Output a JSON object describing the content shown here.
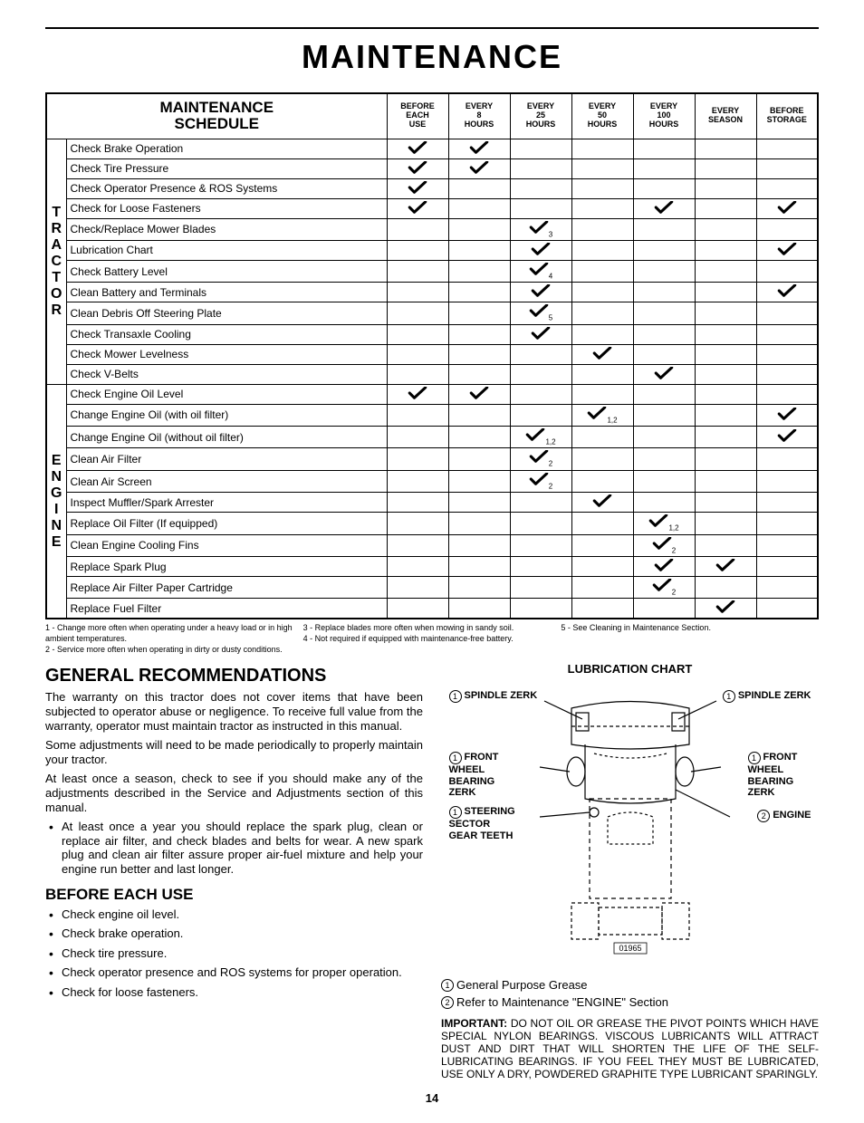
{
  "page_title": "MAINTENANCE",
  "schedule_title_line1": "MAINTENANCE",
  "schedule_title_line2": "SCHEDULE",
  "columns": [
    "BEFORE EACH USE",
    "EVERY 8 HOURS",
    "EVERY 25 HOURS",
    "EVERY 50 HOURS",
    "EVERY 100 HOURS",
    "EVERY SEASON",
    "BEFORE STORAGE"
  ],
  "groups": [
    {
      "label": "TRACTOR",
      "rows": [
        {
          "task": "Check Brake Operation",
          "marks": [
            "✔",
            "✔",
            "",
            "",
            "",
            "",
            ""
          ]
        },
        {
          "task": "Check Tire Pressure",
          "marks": [
            "✔",
            "✔",
            "",
            "",
            "",
            "",
            ""
          ]
        },
        {
          "task": "Check Operator Presence & ROS Systems",
          "marks": [
            "✔",
            "",
            "",
            "",
            "",
            "",
            ""
          ]
        },
        {
          "task": "Check for Loose Fasteners",
          "marks": [
            "✔",
            "",
            "",
            "",
            "✔",
            "",
            "✔"
          ]
        },
        {
          "task": "Check/Replace Mower Blades",
          "marks": [
            "",
            "",
            "✔3",
            "",
            "",
            "",
            ""
          ]
        },
        {
          "task": "Lubrication Chart",
          "marks": [
            "",
            "",
            "✔",
            "",
            "",
            "",
            "✔"
          ]
        },
        {
          "task": "Check Battery Level",
          "marks": [
            "",
            "",
            "✔4",
            "",
            "",
            "",
            ""
          ]
        },
        {
          "task": "Clean Battery and Terminals",
          "marks": [
            "",
            "",
            "✔",
            "",
            "",
            "",
            "✔"
          ]
        },
        {
          "task": "Clean Debris Off Steering Plate",
          "marks": [
            "",
            "",
            "✔5",
            "",
            "",
            "",
            ""
          ]
        },
        {
          "task": "Check Transaxle Cooling",
          "marks": [
            "",
            "",
            "✔",
            "",
            "",
            "",
            ""
          ]
        },
        {
          "task": "Check Mower Levelness",
          "marks": [
            "",
            "",
            "",
            "✔",
            "",
            "",
            ""
          ]
        },
        {
          "task": "Check V-Belts",
          "marks": [
            "",
            "",
            "",
            "",
            "✔",
            "",
            ""
          ]
        }
      ]
    },
    {
      "label": "ENGINE",
      "rows": [
        {
          "task": "Check Engine Oil Level",
          "marks": [
            "✔",
            "✔",
            "",
            "",
            "",
            "",
            ""
          ]
        },
        {
          "task": "Change Engine Oil (with oil filter)",
          "marks": [
            "",
            "",
            "",
            "✔1,2",
            "",
            "",
            "✔"
          ]
        },
        {
          "task": "Change Engine Oil (without oil filter)",
          "marks": [
            "",
            "",
            "✔1,2",
            "",
            "",
            "",
            "✔"
          ]
        },
        {
          "task": "Clean Air Filter",
          "marks": [
            "",
            "",
            "✔2",
            "",
            "",
            "",
            ""
          ]
        },
        {
          "task": "Clean Air Screen",
          "marks": [
            "",
            "",
            "✔2",
            "",
            "",
            "",
            ""
          ]
        },
        {
          "task": "Inspect Muffler/Spark Arrester",
          "marks": [
            "",
            "",
            "",
            "✔",
            "",
            "",
            ""
          ]
        },
        {
          "task": "Replace Oil Filter (If equipped)",
          "marks": [
            "",
            "",
            "",
            "",
            "✔1,2",
            "",
            ""
          ]
        },
        {
          "task": "Clean Engine Cooling Fins",
          "marks": [
            "",
            "",
            "",
            "",
            "✔2",
            "",
            ""
          ]
        },
        {
          "task": "Replace Spark Plug",
          "marks": [
            "",
            "",
            "",
            "",
            "✔",
            "✔",
            ""
          ]
        },
        {
          "task": "Replace Air Filter Paper Cartridge",
          "marks": [
            "",
            "",
            "",
            "",
            "✔2",
            "",
            ""
          ]
        },
        {
          "task": "Replace Fuel Filter",
          "marks": [
            "",
            "",
            "",
            "",
            "",
            "✔",
            ""
          ]
        }
      ]
    }
  ],
  "footnotes": {
    "col1": [
      "1 - Change more often when operating under a heavy load or in high ambient temperatures.",
      "2 - Service more often when operating in dirty or dusty conditions."
    ],
    "col2": [
      "3 - Replace blades more often when mowing in sandy soil.",
      "4 - Not required if equipped with maintenance-free battery."
    ],
    "col3": [
      "5 - See Cleaning in Maintenance Section."
    ]
  },
  "gen_rec_title": "GENERAL RECOMMENDATIONS",
  "gen_rec_paras": [
    "The warranty on this tractor does not cover items that have been subjected to operator abuse or negligence.  To receive full value from the warranty, operator must maintain tractor as instructed in this manual.",
    "Some adjustments will need to be made periodically to properly maintain your tractor.",
    "At least once a season, check to see if you should make any of the adjustments described in the Service and Adjustments section of this manual."
  ],
  "gen_rec_bullet": "At least once a year you should replace the spark plug, clean or replace air filter, and check blades and belts for wear.  A new spark plug and clean air filter assure proper air-fuel mixture and help your engine run better and last longer.",
  "before_title": "BEFORE EACH USE",
  "before_items": [
    "Check engine oil level.",
    "Check brake operation.",
    "Check tire pressure.",
    "Check operator presence and ROS systems for proper operation.",
    "Check for loose fasteners."
  ],
  "lub_title": "LUBRICATION CHART",
  "lub_labels": {
    "spindle_l": "SPINDLE ZERK",
    "spindle_r": "SPINDLE ZERK",
    "wheel_l": "FRONT WHEEL BEARING ZERK",
    "wheel_r": "FRONT WHEEL BEARING ZERK",
    "steering": "STEERING SECTOR GEAR TEETH",
    "engine": "ENGINE",
    "diagram_id": "01965"
  },
  "legend": [
    {
      "n": "1",
      "text": "General Purpose Grease"
    },
    {
      "n": "2",
      "text": "Refer to Maintenance \"ENGINE\" Section"
    }
  ],
  "important_label": "IMPORTANT:",
  "important_text": "DO NOT OIL OR GREASE THE PIVOT POINTS WHICH HAVE SPECIAL NYLON BEARINGS.  VISCOUS LUBRICANTS WILL ATTRACT DUST AND DIRT THAT WILL SHORTEN THE LIFE OF THE SELF-LUBRICATING BEARINGS.  IF YOU FEEL THEY MUST BE LUBRICATED, USE ONLY A DRY, POWDERED GRAPHITE TYPE LUBRICANT SPARINGLY.",
  "page_number": "14",
  "check_color": "#000000"
}
